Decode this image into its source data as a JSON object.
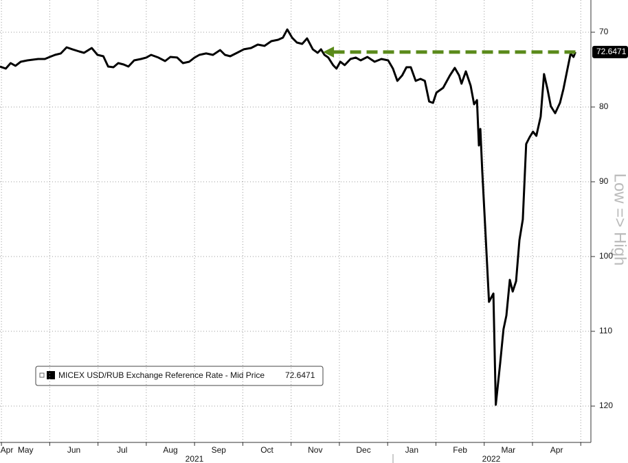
{
  "chart_data": {
    "type": "line",
    "x": [
      0.47,
      0.59,
      0.69,
      0.79,
      0.9,
      1.04,
      1.26,
      1.4,
      1.5,
      1.61,
      1.73,
      1.85,
      1.97,
      2.11,
      2.21,
      2.37,
      2.49,
      2.61,
      2.71,
      2.82,
      2.92,
      3.03,
      3.13,
      3.25,
      3.39,
      3.5,
      3.6,
      3.75,
      3.89,
      4.0,
      4.14,
      4.26,
      4.39,
      4.5,
      4.6,
      4.74,
      4.88,
      5.03,
      5.13,
      5.24,
      5.38,
      5.52,
      5.67,
      5.81,
      5.95,
      6.09,
      6.23,
      6.33,
      6.42,
      6.52,
      6.62,
      6.73,
      6.83,
      6.95,
      7.05,
      7.12,
      7.19,
      7.27,
      7.37,
      7.44,
      7.52,
      7.61,
      7.73,
      7.84,
      7.94,
      8.08,
      8.23,
      8.37,
      8.51,
      8.61,
      8.7,
      8.8,
      8.89,
      8.98,
      9.08,
      9.18,
      9.27,
      9.36,
      9.44,
      9.51,
      9.65,
      9.79,
      9.89,
      9.98,
      10.03,
      10.12,
      10.22,
      10.29,
      10.35,
      10.39,
      10.42,
      10.46,
      10.52,
      10.6,
      10.69,
      10.74,
      10.83,
      10.9,
      10.96,
      11.03,
      11.09,
      11.16,
      11.23,
      11.3,
      11.37,
      11.44,
      11.51,
      11.58,
      11.67,
      11.74,
      11.81,
      11.88,
      11.97,
      12.07,
      12.14,
      12.22,
      12.29,
      12.35,
      12.39
    ],
    "series": [
      {
        "name": "MICEX USD/RUB Exchange Reference Rate - Mid Price",
        "color": "#000000",
        "values": [
          74.59,
          74.86,
          74.13,
          74.49,
          73.95,
          73.76,
          73.58,
          73.58,
          73.3,
          73.03,
          72.84,
          72.02,
          72.29,
          72.57,
          72.75,
          72.11,
          73.03,
          73.21,
          74.59,
          74.68,
          74.13,
          74.31,
          74.59,
          73.76,
          73.58,
          73.39,
          73.03,
          73.39,
          73.85,
          73.3,
          73.39,
          74.13,
          73.95,
          73.39,
          73.03,
          72.84,
          73.03,
          72.39,
          73.03,
          73.21,
          72.75,
          72.29,
          72.11,
          71.65,
          71.83,
          71.19,
          71.01,
          70.73,
          69.63,
          70.73,
          71.38,
          71.56,
          70.83,
          72.29,
          72.75,
          72.29,
          73.03,
          73.39,
          74.4,
          74.86,
          73.95,
          74.4,
          73.58,
          73.39,
          73.76,
          73.3,
          73.95,
          73.58,
          73.76,
          74.86,
          76.51,
          75.78,
          74.68,
          74.68,
          76.51,
          76.24,
          76.51,
          79.27,
          79.45,
          78.07,
          77.43,
          75.78,
          74.77,
          75.78,
          76.88,
          75.23,
          77.16,
          79.63,
          79.08,
          85.14,
          82.94,
          88.62,
          95.96,
          106.05,
          104.95,
          119.82,
          114.31,
          109.72,
          107.89,
          103.12,
          104.68,
          103.3,
          97.8,
          95.05,
          84.95,
          84.04,
          83.3,
          83.85,
          81.28,
          75.6,
          77.61,
          79.91,
          80.83,
          79.45,
          77.61,
          75.05,
          72.84,
          73.3,
          72.65
        ]
      }
    ],
    "last_value": 72.6471,
    "xlim": [
      0.47,
      12.71
    ],
    "xticks": [
      {
        "value": 0,
        "label": "Apr"
      },
      {
        "value": 1,
        "label": "May"
      },
      {
        "value": 2,
        "label": "Jun"
      },
      {
        "value": 3,
        "label": "Jul"
      },
      {
        "value": 4,
        "label": "Aug"
      },
      {
        "value": 5,
        "label": "Sep"
      },
      {
        "value": 6,
        "label": "Oct"
      },
      {
        "value": 7,
        "label": "Nov"
      },
      {
        "value": 8,
        "label": "Dec"
      },
      {
        "value": 9,
        "label": "Jan"
      },
      {
        "value": 10,
        "label": "Feb"
      },
      {
        "value": 11,
        "label": "Mar"
      },
      {
        "value": 12,
        "label": "Apr"
      }
    ],
    "year_labels": [
      "2021",
      "2022"
    ],
    "ylim": [
      124.86,
      65.69
    ],
    "yticks": [
      70,
      80,
      90,
      100,
      110,
      120
    ],
    "axis_note": "Low => High",
    "grid": true,
    "arrow": {
      "y": 72.6471,
      "x_start": 12.39,
      "x_end": 7.16,
      "color": "#5a8a1a"
    }
  }
}
